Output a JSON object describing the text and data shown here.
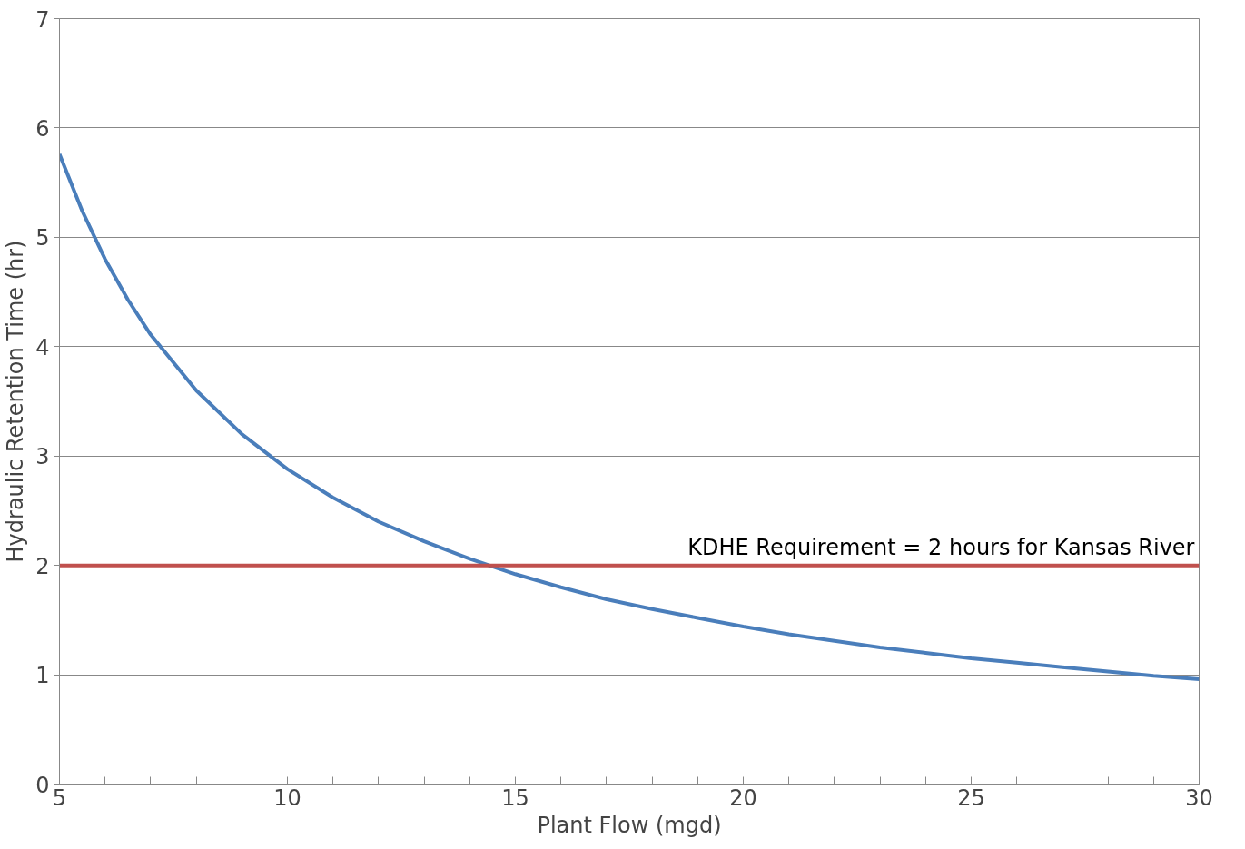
{
  "chart_data": {
    "type": "line",
    "xlabel": "Plant Flow (mgd)",
    "ylabel": "Hydraulic Retention Time (hr)",
    "x": [
      5,
      5.5,
      6,
      6.5,
      7,
      8,
      9,
      10,
      11,
      12,
      13,
      14,
      15,
      16,
      17,
      18,
      19,
      20,
      21,
      22,
      23,
      24,
      25,
      26,
      27,
      28,
      29,
      30
    ],
    "series": [
      {
        "color": "#4a7ebb",
        "values": [
          5.76,
          5.24,
          4.8,
          4.43,
          4.11,
          3.6,
          3.2,
          2.88,
          2.62,
          2.4,
          2.22,
          2.06,
          1.92,
          1.8,
          1.69,
          1.6,
          1.52,
          1.44,
          1.37,
          1.31,
          1.25,
          1.2,
          1.15,
          1.11,
          1.07,
          1.03,
          0.99,
          0.96
        ]
      }
    ],
    "xlim": [
      5,
      30
    ],
    "xticks": [
      5,
      {
        "value": 6,
        "label": null
      },
      {
        "value": 7,
        "label": null
      },
      {
        "value": 8,
        "label": null
      },
      {
        "value": 9,
        "label": null
      },
      10,
      {
        "value": 11,
        "label": null
      },
      {
        "value": 12,
        "label": null
      },
      {
        "value": 13,
        "label": null
      },
      {
        "value": 14,
        "label": null
      },
      15,
      {
        "value": 16,
        "label": null
      },
      {
        "value": 17,
        "label": null
      },
      {
        "value": 18,
        "label": null
      },
      {
        "value": 19,
        "label": null
      },
      20,
      {
        "value": 21,
        "label": null
      },
      {
        "value": 22,
        "label": null
      },
      {
        "value": 23,
        "label": null
      },
      {
        "value": 24,
        "label": null
      },
      25,
      {
        "value": 26,
        "label": null
      },
      {
        "value": 27,
        "label": null
      },
      {
        "value": 28,
        "label": null
      },
      {
        "value": 29,
        "label": null
      },
      30
    ],
    "ylim": [
      0,
      7
    ],
    "yticks": [
      0,
      1,
      2,
      3,
      4,
      5,
      6,
      7
    ],
    "ref_lines": [
      {
        "axis": "y",
        "value": 2,
        "label": "KDHE Requirement = 2 hours for Kansas River",
        "color": "#c0504d"
      }
    ],
    "grid": "y",
    "marker": "none",
    "line_style": "solid"
  }
}
